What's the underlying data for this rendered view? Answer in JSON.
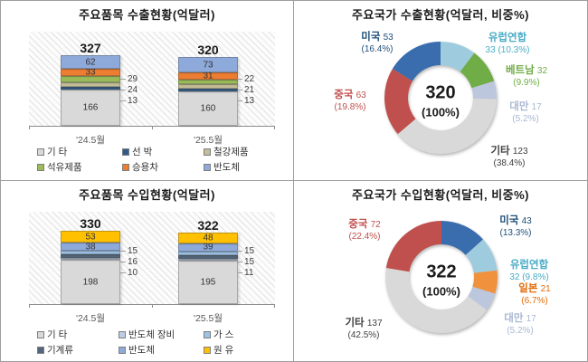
{
  "chart_data": [
    {
      "id": "export_items",
      "type": "bar",
      "stacked": true,
      "title": "주요품목 수출현황(억달러)",
      "categories": [
        "'24.5월",
        "'25.5월"
      ],
      "totals": [
        "327",
        "320"
      ],
      "series": [
        {
          "name": "기 타",
          "color": "#D9D9D9",
          "values": [
            166,
            160
          ],
          "label": "inside"
        },
        {
          "name": "선 박",
          "color": "#2E5C8A",
          "values": [
            13,
            13
          ],
          "label": "callout"
        },
        {
          "name": "철강제품",
          "color": "#C4BD97",
          "values": [
            24,
            21
          ],
          "label": "callout"
        },
        {
          "name": "석유제품",
          "color": "#9BBB59",
          "values": [
            29,
            22
          ],
          "label": "callout"
        },
        {
          "name": "승용차",
          "color": "#ED7D31",
          "values": [
            33,
            31
          ],
          "label": "inside"
        },
        {
          "name": "반도체",
          "color": "#8EAADB",
          "values": [
            62,
            73
          ],
          "label": "inside"
        }
      ],
      "legend_order": [
        "기 타",
        "선 박",
        "철강제품",
        "석유제품",
        "승용차",
        "반도체"
      ]
    },
    {
      "id": "export_countries",
      "type": "donut",
      "title": "주요국가 수출현황(억달러, 비중%)",
      "center_value": "320",
      "center_pct": "(100%)",
      "items": [
        {
          "name": "미국",
          "value": "53",
          "pct": "16.4%",
          "color": "#3A6DAD",
          "text_color": "#1F4E79"
        },
        {
          "name": "유럽연합",
          "value": "33",
          "pct": "10.3%",
          "color": "#9FCBDE",
          "text_color": "#4BACC6"
        },
        {
          "name": "베트남",
          "value": "32",
          "pct": "9.9%",
          "color": "#70AD47",
          "text_color": "#70AD47"
        },
        {
          "name": "대만",
          "value": "17",
          "pct": "5.2%",
          "color": "#BCC7DE",
          "text_color": "#A9B8D3"
        },
        {
          "name": "기타",
          "value": "123",
          "pct": "38.4%",
          "color": "#D9D9D9",
          "text_color": "#404040"
        },
        {
          "name": "중국",
          "value": "63",
          "pct": "19.8%",
          "color": "#C0504D",
          "text_color": "#C0504D"
        }
      ],
      "clockwise_order_from_top": [
        "유럽연합",
        "베트남",
        "대만",
        "기타",
        "중국",
        "미국"
      ]
    },
    {
      "id": "import_items",
      "type": "bar",
      "stacked": true,
      "title": "주요품목 수입현황(억달러)",
      "categories": [
        "'24.5월",
        "'25.5월"
      ],
      "totals": [
        "330",
        "322"
      ],
      "series": [
        {
          "name": "기 타",
          "color": "#D9D9D9",
          "values": [
            198,
            195
          ],
          "label": "inside"
        },
        {
          "name": "반도체 장비",
          "color": "#BCCDE4",
          "values": [
            10,
            11
          ],
          "label": "callout"
        },
        {
          "name": "기계류",
          "color": "#53657A",
          "values": [
            16,
            15
          ],
          "label": "callout"
        },
        {
          "name": "가 스",
          "color": "#9DC3E6",
          "values": [
            15,
            15
          ],
          "label": "callout"
        },
        {
          "name": "반도체",
          "color": "#8EAADB",
          "values": [
            38,
            39
          ],
          "label": "inside"
        },
        {
          "name": "원 유",
          "color": "#FFC000",
          "values": [
            53,
            48
          ],
          "label": "inside"
        }
      ],
      "legend_order": [
        "기 타",
        "반도체 장비",
        "가 스",
        "기계류",
        "반도체",
        "원 유"
      ]
    },
    {
      "id": "import_countries",
      "type": "donut",
      "title": "주요국가 수입현황(억달러, 비중%)",
      "center_value": "322",
      "center_pct": "(100%)",
      "items": [
        {
          "name": "미국",
          "value": "43",
          "pct": "13.3%",
          "color": "#3A6DAD",
          "text_color": "#1F4E79"
        },
        {
          "name": "유럽연합",
          "value": "32",
          "pct": "9.8%",
          "color": "#9FCBDE",
          "text_color": "#4BACC6"
        },
        {
          "name": "일본",
          "value": "21",
          "pct": "6.7%",
          "color": "#F0913D",
          "text_color": "#E36C0A"
        },
        {
          "name": "대만",
          "value": "17",
          "pct": "5.2%",
          "color": "#BCC7DE",
          "text_color": "#A9B8D3"
        },
        {
          "name": "기타",
          "value": "137",
          "pct": "42.5%",
          "color": "#D9D9D9",
          "text_color": "#404040"
        },
        {
          "name": "중국",
          "value": "72",
          "pct": "22.4%",
          "color": "#C0504D",
          "text_color": "#C0504D"
        }
      ],
      "clockwise_order_from_top": [
        "미국",
        "유럽연합",
        "일본",
        "대만",
        "기타",
        "중국"
      ]
    }
  ]
}
